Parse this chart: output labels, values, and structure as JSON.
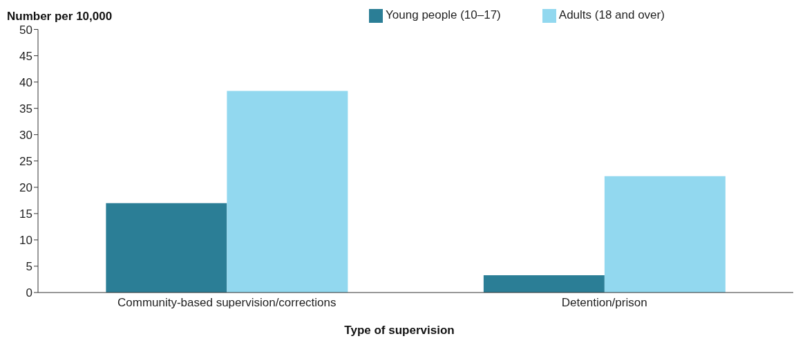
{
  "chart_data": {
    "type": "bar",
    "ylabel": "Number per 10,000",
    "xlabel": "Type of supervision",
    "categories": [
      "Community-based supervision/corrections",
      "Detention/prison"
    ],
    "series": [
      {
        "name": "Young people (10–17)",
        "color": "#2b7e96",
        "values": [
          17,
          3.3
        ]
      },
      {
        "name": "Adults (18 and over)",
        "color": "#92d8ef",
        "values": [
          38.3,
          22.1
        ]
      }
    ],
    "ylim": [
      0,
      50
    ],
    "yticks": [
      0,
      5,
      10,
      15,
      20,
      25,
      30,
      35,
      40,
      45,
      50
    ],
    "grid": false,
    "legend": "top"
  }
}
